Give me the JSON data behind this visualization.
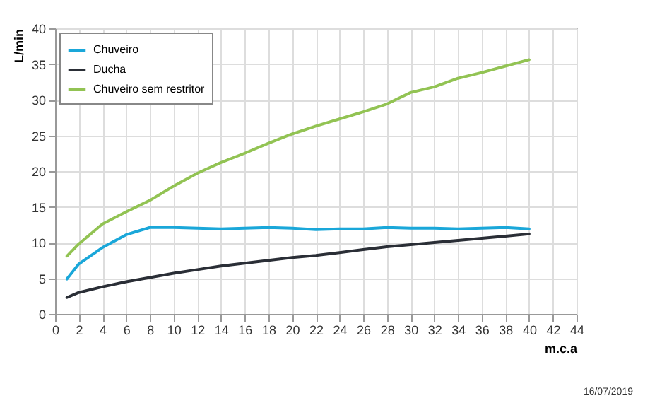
{
  "chart_data": {
    "type": "line",
    "xlabel": "m.c.a",
    "ylabel": "L/min",
    "x": [
      1,
      2,
      4,
      6,
      8,
      10,
      12,
      14,
      16,
      18,
      20,
      22,
      24,
      26,
      28,
      30,
      32,
      34,
      36,
      38,
      40
    ],
    "series": [
      {
        "name": "Chuveiro",
        "color": "#1aa7d9",
        "values": [
          4.9,
          7,
          9.3,
          11.1,
          12.1,
          12.1,
          12,
          11.9,
          12,
          12.1,
          12,
          11.8,
          11.9,
          11.9,
          12.1,
          12,
          12,
          11.9,
          12,
          12.1,
          11.9
        ]
      },
      {
        "name": "Ducha",
        "color": "#2a2e36",
        "values": [
          2.3,
          3,
          3.8,
          4.5,
          5.1,
          5.7,
          6.2,
          6.7,
          7.1,
          7.5,
          7.9,
          8.2,
          8.6,
          9,
          9.4,
          9.7,
          10,
          10.3,
          10.6,
          10.9,
          11.2
        ]
      },
      {
        "name": "Chuveiro sem restritor",
        "color": "#92c353",
        "values": [
          8.1,
          9.8,
          12.6,
          14.3,
          15.9,
          17.9,
          19.7,
          21.2,
          22.5,
          23.9,
          25.2,
          26.3,
          27.3,
          28.3,
          29.4,
          31,
          31.8,
          33,
          33.8,
          34.7,
          35.6
        ]
      }
    ],
    "xlim": [
      0,
      44
    ],
    "xticks": [
      0,
      2,
      4,
      6,
      8,
      10,
      12,
      14,
      16,
      18,
      20,
      22,
      24,
      26,
      28,
      30,
      32,
      34,
      36,
      38,
      40,
      42,
      44
    ],
    "ylim": [
      0,
      40
    ],
    "yticks": [
      0,
      5,
      10,
      15,
      20,
      25,
      30,
      35,
      40
    ],
    "grid": true,
    "legend": "top left",
    "marker": "none",
    "line_style": "solid",
    "annotations": [
      "16/07/2019"
    ]
  }
}
